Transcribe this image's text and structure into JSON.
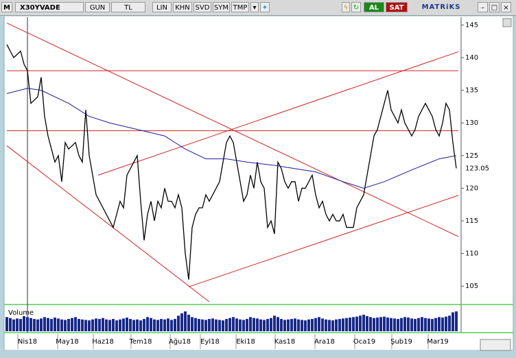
{
  "toolbar": {
    "logo": "M",
    "symbol": "X30YVADE",
    "buttons": [
      "GUN",
      "TL",
      "LIN",
      "KHN",
      "SVD",
      "SYM",
      "TMP"
    ],
    "buy": "AL",
    "sell": "SAT",
    "brand": "MATRiKS"
  },
  "chart_data": {
    "type": "line",
    "xlim": [
      0,
      131.6
    ],
    "ylim": [
      102.4,
      146.2
    ],
    "yticks": [
      105,
      110,
      115,
      120,
      125,
      130,
      135,
      140,
      145
    ],
    "xticks": [
      {
        "value": 6,
        "label": "Nis18"
      },
      {
        "value": 17.6,
        "label": "May18"
      },
      {
        "value": 28,
        "label": "Haz18"
      },
      {
        "value": 39,
        "label": "Tem18"
      },
      {
        "value": 50.4,
        "label": "Ağu18"
      },
      {
        "value": 59.2,
        "label": "Eyl18"
      },
      {
        "value": 69.6,
        "label": "Eki18"
      },
      {
        "value": 81,
        "label": "Kas18"
      },
      {
        "value": 92.6,
        "label": "Ara18"
      },
      {
        "value": 104.2,
        "label": "Oca19"
      },
      {
        "value": 115,
        "label": "Şub19"
      },
      {
        "value": 125.6,
        "label": "Mar19"
      }
    ],
    "series": [
      {
        "color": "#000000",
        "values": [
          142,
          141,
          140,
          140.5,
          141,
          139,
          138,
          133,
          133.5,
          134,
          137,
          131,
          128,
          126,
          124,
          125,
          121,
          127,
          126,
          126.5,
          127,
          125,
          124,
          132,
          125,
          122,
          119,
          118,
          117,
          116,
          115,
          114,
          116,
          118,
          117,
          122,
          123,
          124,
          125,
          118,
          112,
          116,
          118,
          115,
          118,
          117,
          120,
          118,
          118,
          117,
          119,
          117,
          110,
          106,
          114,
          116,
          117,
          117,
          119,
          118,
          119,
          120,
          121,
          124,
          127,
          128,
          127,
          124,
          121,
          118,
          119,
          122,
          120,
          124,
          121,
          120,
          114,
          115,
          113,
          124,
          123,
          121,
          120,
          121,
          121,
          118,
          120,
          120,
          121,
          122,
          119,
          117,
          118,
          116,
          115,
          116,
          115,
          115,
          116,
          114,
          114,
          114,
          117,
          118,
          119,
          122,
          125,
          128,
          129,
          131,
          133,
          135,
          132,
          131,
          130,
          132,
          130,
          129,
          128,
          129,
          131,
          132,
          133,
          132,
          131,
          129,
          128,
          130,
          133,
          132,
          127,
          123.05
        ]
      },
      {
        "color": "#1a1a9a",
        "x": [
          0,
          6,
          10,
          18,
          24,
          30,
          38,
          46,
          52,
          58,
          64,
          70,
          78,
          84,
          90,
          98,
          104,
          110,
          118,
          126,
          131
        ],
        "values": [
          134.5,
          135.3,
          135,
          133,
          131,
          130,
          129,
          128,
          126,
          124.5,
          124.5,
          124,
          123.5,
          123,
          122.5,
          121,
          120,
          121,
          122.8,
          124.5,
          125
        ]
      }
    ],
    "trendlines": {
      "color": "#cc2222",
      "lines": [
        {
          "x": [
            0,
            131.6
          ],
          "values": [
            145.3,
            112.6
          ]
        },
        {
          "x": [
            0,
            59
          ],
          "values": [
            126.5,
            102.6
          ]
        },
        {
          "x": [
            53,
            131.6
          ],
          "values": [
            104.9,
            118.9
          ]
        },
        {
          "x": [
            26.6,
            131.6
          ],
          "values": [
            122,
            140.9
          ]
        },
        {
          "x": [
            0,
            131.6
          ],
          "values": [
            138,
            138
          ]
        },
        {
          "x": [
            0,
            131.6
          ],
          "values": [
            128.8,
            128.8
          ]
        }
      ]
    },
    "volume": {
      "label": "Volume",
      "color": "#1a2a8a",
      "ylim": [
        0,
        450
      ],
      "values": [
        300,
        280,
        250,
        270,
        260,
        320,
        300,
        280,
        260,
        250,
        270,
        300,
        280,
        260,
        290,
        270,
        250,
        240,
        260,
        280,
        300,
        260,
        250,
        240,
        230,
        250,
        270,
        260,
        280,
        250,
        240,
        260,
        230,
        250,
        270,
        290,
        260,
        240,
        250,
        230,
        260,
        300,
        280,
        250,
        240,
        260,
        250,
        270,
        240,
        260,
        330,
        380,
        420,
        350,
        300,
        280,
        260,
        250,
        240,
        260,
        270,
        250,
        240,
        230,
        260,
        280,
        300,
        270,
        250,
        240,
        260,
        300,
        280,
        270,
        250,
        240,
        260,
        280,
        330,
        300,
        260,
        240,
        250,
        260,
        270,
        250,
        240,
        230,
        250,
        260,
        280,
        300,
        270,
        250,
        240,
        230,
        250,
        260,
        270,
        280,
        290,
        300,
        310,
        330,
        350,
        320,
        300,
        280,
        290,
        300,
        310,
        290,
        280,
        270,
        260,
        280,
        300,
        290,
        270,
        260,
        280,
        300,
        280,
        270,
        260,
        280,
        300,
        290,
        310,
        330,
        400,
        420
      ]
    }
  }
}
